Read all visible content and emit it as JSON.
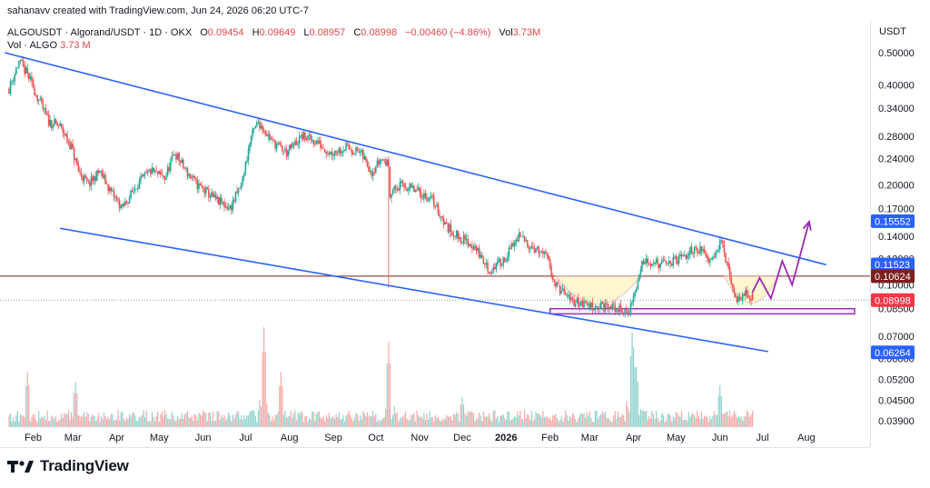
{
  "header": {
    "byline": "sahanavv created with TradingView.com, Jun 24, 2026 06:20 UTC-7",
    "symbol_title": "ALGOUSDT · Algorand/USDT · 1D · OKX",
    "ohlc": [
      {
        "label": "O",
        "value": "0.09454"
      },
      {
        "label": "H",
        "value": "0.09649"
      },
      {
        "label": "L",
        "value": "0.08957"
      },
      {
        "label": "C",
        "value": "0.08998"
      }
    ],
    "change": "−0.00460 (−4.86%)",
    "vol_label": "Vol",
    "vol_value": "3.73M",
    "vol_series_label": "Vol · ALGO",
    "vol_series_value": "3.73 M"
  },
  "footer": {
    "brand": "TradingView"
  },
  "colors": {
    "up": "#26a69a",
    "down": "#ef5350",
    "trendline": "#2962ff",
    "projection": "#9c27b0",
    "support_line": "#7b1f1f",
    "last_price": "#f23645"
  },
  "chart_data": {
    "type": "candlestick",
    "scale": "log",
    "y_axis_title": "USDT",
    "price_ticks": [
      "0.50000",
      "0.40000",
      "0.34000",
      "0.28000",
      "0.24000",
      "0.20000",
      "0.17000",
      "0.14000",
      "0.12000",
      "0.10000",
      "0.08500",
      "0.07000",
      "0.06000",
      "0.05200",
      "0.04500",
      "0.03900"
    ],
    "x_ticks": [
      "Feb",
      "Mar",
      "Apr",
      "May",
      "Jun",
      "Jul",
      "Aug",
      "Sep",
      "Oct",
      "Nov",
      "Dec",
      "2026",
      "Feb",
      "Mar",
      "Apr",
      "May",
      "Jun",
      "Jul",
      "Aug"
    ],
    "price_labels": [
      {
        "value": "0.15552",
        "kind": "target"
      },
      {
        "value": "0.11523",
        "kind": "trendline"
      },
      {
        "value": "0.10624",
        "kind": "horizontal"
      },
      {
        "value": "0.08998",
        "kind": "last"
      },
      {
        "value": "0.06264",
        "kind": "trendline"
      }
    ],
    "path_anchors": [
      [
        "Jan 15",
        0.39
      ],
      [
        "Jan 22",
        0.47
      ],
      [
        "Jan 28",
        0.43
      ],
      [
        "Feb 5",
        0.36
      ],
      [
        "Feb 12",
        0.31
      ],
      [
        "Feb 20",
        0.3
      ],
      [
        "Feb 28",
        0.26
      ],
      [
        "Mar 5",
        0.22
      ],
      [
        "Mar 12",
        0.2
      ],
      [
        "Mar 20",
        0.22
      ],
      [
        "Mar 28",
        0.19
      ],
      [
        "Apr 5",
        0.17
      ],
      [
        "Apr 15",
        0.2
      ],
      [
        "Apr 25",
        0.22
      ],
      [
        "May 5",
        0.21
      ],
      [
        "May 12",
        0.25
      ],
      [
        "May 20",
        0.22
      ],
      [
        "May 28",
        0.2
      ],
      [
        "Jun 10",
        0.18
      ],
      [
        "Jun 20",
        0.17
      ],
      [
        "Jun 28",
        0.2
      ],
      [
        "Jul 5",
        0.28
      ],
      [
        "Jul 10",
        0.31
      ],
      [
        "Jul 20",
        0.27
      ],
      [
        "Jul 30",
        0.25
      ],
      [
        "Aug 10",
        0.28
      ],
      [
        "Aug 20",
        0.27
      ],
      [
        "Aug 30",
        0.25
      ],
      [
        "Sep 10",
        0.26
      ],
      [
        "Sep 20",
        0.25
      ],
      [
        "Sep 28",
        0.22
      ],
      [
        "Oct 5",
        0.24
      ],
      [
        "Oct 10",
        0.23
      ],
      [
        "Oct 11",
        0.19
      ],
      [
        "Oct 20",
        0.2
      ],
      [
        "Oct 31",
        0.19
      ],
      [
        "Nov 10",
        0.18
      ],
      [
        "Nov 20",
        0.15
      ],
      [
        "Nov 28",
        0.14
      ],
      [
        "Dec 10",
        0.13
      ],
      [
        "Dec 20",
        0.11
      ],
      [
        "Dec 31",
        0.12
      ],
      [
        "Jan 10 2026",
        0.14
      ],
      [
        "Jan 20 2026",
        0.13
      ],
      [
        "Jan 30 2026",
        0.12
      ],
      [
        "Feb 5 2026",
        0.1
      ],
      [
        "Feb 15 2026",
        0.09
      ],
      [
        "Feb 28 2026",
        0.087
      ],
      [
        "Mar 10 2026",
        0.086
      ],
      [
        "Mar 20 2026",
        0.085
      ],
      [
        "Mar 28 2026",
        0.082
      ],
      [
        "Apr 2 2026",
        0.095
      ],
      [
        "Apr 8 2026",
        0.12
      ],
      [
        "Apr 20 2026",
        0.115
      ],
      [
        "May 5 2026",
        0.12
      ],
      [
        "May 15 2026",
        0.13
      ],
      [
        "May 25 2026",
        0.12
      ],
      [
        "Jun 2 2026",
        0.135
      ],
      [
        "Jun 8 2026",
        0.105
      ],
      [
        "Jun 12 2026",
        0.09
      ],
      [
        "Jun 18 2026",
        0.094
      ],
      [
        "Jun 24 2026",
        0.08998
      ]
    ],
    "projection_path": [
      [
        "Jun 24 2026",
        0.095
      ],
      [
        "Jun 29 2026",
        0.105
      ],
      [
        "Jul 7 2026",
        0.091
      ],
      [
        "Jul 15 2026",
        0.118
      ],
      [
        "Jul 22 2026",
        0.1
      ],
      [
        "Aug 3 2026",
        0.155
      ]
    ],
    "upper_trendline": [
      [
        "Jan 12",
        0.5
      ],
      [
        "Aug 15 2026",
        0.115
      ]
    ],
    "lower_trendline": [
      [
        "Feb 20",
        0.148
      ],
      [
        "Jul 5 2026",
        0.063
      ]
    ],
    "horizontal_level": 0.10624,
    "support_zone": [
      0.0818,
      0.0848
    ],
    "volume_note": "histogram, spikes near Jul 2025, Oct 2025 and Apr 2026"
  }
}
